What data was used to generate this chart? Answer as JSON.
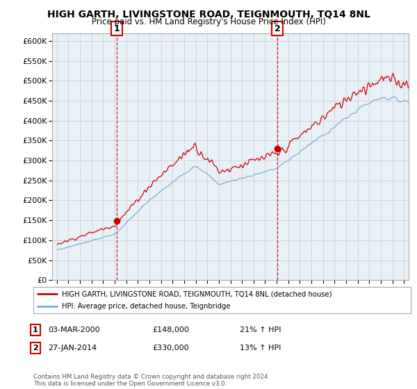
{
  "title": "HIGH GARTH, LIVINGSTONE ROAD, TEIGNMOUTH, TQ14 8NL",
  "subtitle": "Price paid vs. HM Land Registry's House Price Index (HPI)",
  "legend_line1": "HIGH GARTH, LIVINGSTONE ROAD, TEIGNMOUTH, TQ14 8NL (detached house)",
  "legend_line2": "HPI: Average price, detached house, Teignbridge",
  "ann1_x": 2000.17,
  "ann1_y": 148000,
  "ann2_x": 2014.07,
  "ann2_y": 330000,
  "ann1_label": "1",
  "ann2_label": "2",
  "row1": [
    "1",
    "03-MAR-2000",
    "£148,000",
    "21% ↑ HPI"
  ],
  "row2": [
    "2",
    "27-JAN-2014",
    "£330,000",
    "13% ↑ HPI"
  ],
  "footnote": "Contains HM Land Registry data © Crown copyright and database right 2024.\nThis data is licensed under the Open Government Licence v3.0.",
  "red_color": "#cc0000",
  "blue_color": "#7aabcf",
  "bg_fill": "#e8f0f8",
  "ylim": [
    0,
    620000
  ],
  "ytick_vals": [
    0,
    50000,
    100000,
    150000,
    200000,
    250000,
    300000,
    350000,
    400000,
    450000,
    500000,
    550000,
    600000
  ],
  "ytick_labels": [
    "£0",
    "£50K",
    "£100K",
    "£150K",
    "£200K",
    "£250K",
    "£300K",
    "£350K",
    "£400K",
    "£450K",
    "£500K",
    "£550K",
    "£600K"
  ],
  "xmin": 1994.6,
  "xmax": 2025.4
}
